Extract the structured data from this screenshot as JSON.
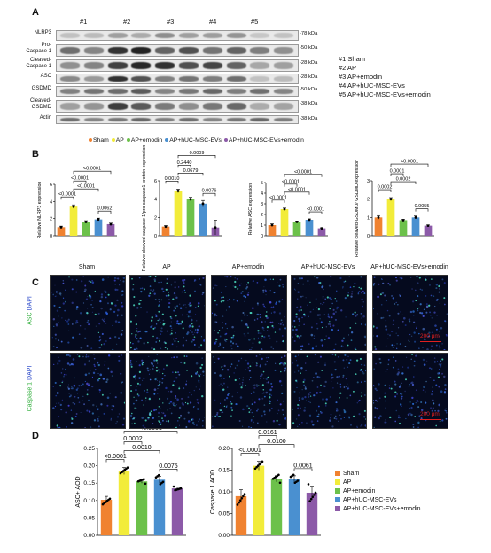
{
  "panel_labels": {
    "A": "A",
    "B": "B",
    "C": "C",
    "D": "D"
  },
  "panelA": {
    "lanes": [
      "#1",
      "#2",
      "#3",
      "#4",
      "#5"
    ],
    "rows": [
      {
        "label": "NLRP3",
        "kda": "-78 kDa"
      },
      {
        "label": "Pro-\nCaspase 1",
        "kda": "-50 kDa"
      },
      {
        "label": "Cleaved-\nCaspase 1",
        "kda": "-28 kDa"
      },
      {
        "label": "ASC",
        "kda": "-28 kDa"
      },
      {
        "label": "GSDMD",
        "kda": "-50 kDa"
      },
      {
        "label": "Cleaved-\nGSDMD",
        "kda": "-38 kDa"
      },
      {
        "label": "Actin",
        "kda": "-38 kDa"
      }
    ],
    "legend": [
      "#1 Sham",
      "#2 AP",
      "#3 AP+emodin",
      "#4 AP+hUC-MSC-EVs",
      "#5 AP+hUC-MSC-EVs+emodin"
    ]
  },
  "groups": [
    "Sham",
    "AP",
    "AP+emodin",
    "AP+hUC-MSC-EVs",
    "AP+hUC-MSC-EVs+emodin"
  ],
  "colors": {
    "Sham": "#f08230",
    "AP": "#f2ec3a",
    "AP+emodin": "#6cc14a",
    "AP+hUC-MSC-EVs": "#4a90d0",
    "AP+hUC-MSC-EVs+emodin": "#8c5aa8"
  },
  "panelC": {
    "columns": [
      "Sham",
      "AP",
      "AP+emodin",
      "AP+hUC-MSC-EVs",
      "AP+hUC-MSC-EVs+emodin"
    ],
    "row1_label": {
      "marker": "ASC",
      "sep": " ",
      "dapi": "DAPI"
    },
    "row2_label": {
      "marker": "Caspase 1",
      "sep": " ",
      "dapi": "DAPI"
    },
    "scalebar": "200 μm"
  },
  "chart_data": [
    {
      "type": "bar",
      "panel": "B",
      "ylabel": "Relative NLRP3 expression",
      "ylim": [
        0,
        6
      ],
      "yticks": [
        0,
        2,
        4,
        6
      ],
      "categories": [
        "Sham",
        "AP",
        "AP+emodin",
        "AP+hUC-MSC-EVs",
        "AP+hUC-MSC-EVs+emodin"
      ],
      "values": [
        1.0,
        3.4,
        1.6,
        1.9,
        1.35
      ],
      "errors": [
        0.12,
        0.2,
        0.15,
        0.15,
        0.12
      ],
      "comparisons": [
        {
          "from": 0,
          "to": 1,
          "label": "<0.0001"
        },
        {
          "from": 1,
          "to": 2,
          "label": "<0.0001"
        },
        {
          "from": 1,
          "to": 3,
          "label": "<0.0001"
        },
        {
          "from": 1,
          "to": 4,
          "label": "<0.0001"
        },
        {
          "from": 3,
          "to": 4,
          "label": "0.0062"
        }
      ]
    },
    {
      "type": "bar",
      "panel": "B",
      "ylabel": "Relative cleaved caspase 1/pro caspase1 protein expression",
      "ylim": [
        0,
        6
      ],
      "yticks": [
        0,
        2,
        4,
        6
      ],
      "categories": [
        "Sham",
        "AP",
        "AP+emodin",
        "AP+hUC-MSC-EVs",
        "AP+hUC-MSC-EVs+emodin"
      ],
      "values": [
        1.0,
        4.9,
        4.0,
        3.5,
        0.9
      ],
      "errors": [
        0.1,
        0.2,
        0.2,
        0.35,
        0.8
      ],
      "comparisons": [
        {
          "from": 0,
          "to": 1,
          "label": "0.0010"
        },
        {
          "from": 1,
          "to": 2,
          "label": "0.2440"
        },
        {
          "from": 1,
          "to": 3,
          "label": "0.0679"
        },
        {
          "from": 1,
          "to": 4,
          "label": "0.0009"
        },
        {
          "from": 3,
          "to": 4,
          "label": "0.0076"
        }
      ]
    },
    {
      "type": "bar",
      "panel": "B",
      "ylabel": "Relative ASC expression",
      "ylim": [
        0,
        5
      ],
      "yticks": [
        0,
        1,
        2,
        3,
        4,
        5
      ],
      "categories": [
        "Sham",
        "AP",
        "AP+emodin",
        "AP+hUC-MSC-EVs",
        "AP+hUC-MSC-EVs+emodin"
      ],
      "values": [
        1.0,
        2.5,
        1.3,
        1.5,
        0.7
      ],
      "errors": [
        0.12,
        0.1,
        0.08,
        0.08,
        0.05
      ],
      "comparisons": [
        {
          "from": 0,
          "to": 1,
          "label": "<0.0001"
        },
        {
          "from": 1,
          "to": 2,
          "label": "<0.0001"
        },
        {
          "from": 1,
          "to": 3,
          "label": "<0.0001"
        },
        {
          "from": 1,
          "to": 4,
          "label": "<0.0001"
        },
        {
          "from": 3,
          "to": 4,
          "label": "<0.0001"
        }
      ]
    },
    {
      "type": "bar",
      "panel": "B",
      "ylabel": "Relative cleaved-GSDMD/ GSDMD expression",
      "ylim": [
        0,
        3
      ],
      "yticks": [
        0,
        1,
        2,
        3
      ],
      "categories": [
        "Sham",
        "AP",
        "AP+emodin",
        "AP+hUC-MSC-EVs",
        "AP+hUC-MSC-EVs+emodin"
      ],
      "values": [
        1.0,
        2.0,
        0.85,
        1.0,
        0.55
      ],
      "errors": [
        0.1,
        0.08,
        0.04,
        0.08,
        0.04
      ],
      "comparisons": [
        {
          "from": 0,
          "to": 1,
          "label": "0.0002"
        },
        {
          "from": 1,
          "to": 2,
          "label": "0.0001"
        },
        {
          "from": 1,
          "to": 3,
          "label": "0.0002"
        },
        {
          "from": 1,
          "to": 4,
          "label": "<0.0001"
        },
        {
          "from": 3,
          "to": 4,
          "label": "0.0055"
        }
      ]
    },
    {
      "type": "bar",
      "panel": "D",
      "ylabel": "ASC+ AOD",
      "ylim": [
        0,
        0.25
      ],
      "yticks": [
        "0.00",
        "0.05",
        "0.10",
        "0.15",
        "0.20",
        "0.25"
      ],
      "categories": [
        "Sham",
        "AP",
        "AP+emodin",
        "AP+hUC-MSC-EVs",
        "AP+hUC-MSC-EVs+emodin"
      ],
      "values": [
        0.102,
        0.185,
        0.155,
        0.16,
        0.135
      ],
      "errors": [
        0.01,
        0.01,
        0.005,
        0.01,
        0.004
      ],
      "comparisons": [
        {
          "from": 0,
          "to": 1,
          "label": "<0.0001"
        },
        {
          "from": 1,
          "to": 2,
          "label": "0.0002"
        },
        {
          "from": 1,
          "to": 3,
          "label": "0.0010"
        },
        {
          "from": 1,
          "to": 4,
          "label": "<0.0001"
        },
        {
          "from": 3,
          "to": 4,
          "label": "0.0075"
        }
      ]
    },
    {
      "type": "bar",
      "panel": "D",
      "ylabel": "Caspase 1 AOD",
      "ylim": [
        0,
        0.2
      ],
      "yticks": [
        "0.00",
        "0.05",
        "0.10",
        "0.15",
        "0.20"
      ],
      "categories": [
        "Sham",
        "AP",
        "AP+emodin",
        "AP+hUC-MSC-EVs",
        "AP+hUC-MSC-EVs+emodin"
      ],
      "values": [
        0.09,
        0.16,
        0.13,
        0.13,
        0.098
      ],
      "errors": [
        0.015,
        0.01,
        0.007,
        0.007,
        0.015
      ],
      "comparisons": [
        {
          "from": 0,
          "to": 1,
          "label": "<0.0001"
        },
        {
          "from": 1,
          "to": 2,
          "label": "0.0161"
        },
        {
          "from": 1,
          "to": 3,
          "label": "0.0100"
        },
        {
          "from": 1,
          "to": 4,
          "label": "<0.0001"
        },
        {
          "from": 3,
          "to": 4,
          "label": "0.0061"
        }
      ]
    }
  ]
}
